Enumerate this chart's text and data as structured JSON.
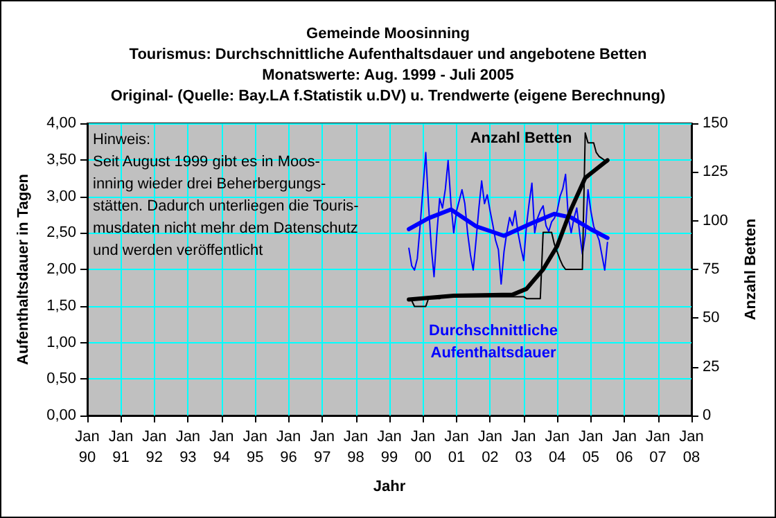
{
  "chart_data": {
    "type": "line",
    "title": "Gemeinde Moosinning",
    "subtitle": "Tourismus: Durchschnittliche Aufenthaltsdauer und angebotene Betten\nMonatswerte: Aug. 1999 - Juli 2005\nOriginal- (Quelle: Bay.LA f.Statistik u.DV) u. Trendwerte (eigene Berechnung)",
    "xlabel": "Jahr",
    "ylabel": "Aufenthaltsdauer in Tagen",
    "y2label": "Anzahl Betten",
    "annotations": [
      "Hinweis:\nSeit August 1999 gibt es in Moos-\ninning wieder drei Beherbergungs-\nstätten. Dadurch unterliegen die Touris-\nmusdaten nicht mehr dem Datenschutz\nund werden veröffentlicht"
    ],
    "xlim": [
      "1990-01",
      "2008-01"
    ],
    "xticks": [
      {
        "value": "1990-01",
        "label": "Jan\n90"
      },
      {
        "value": "1991-01",
        "label": "Jan\n91"
      },
      {
        "value": "1992-01",
        "label": "Jan\n92"
      },
      {
        "value": "1993-01",
        "label": "Jan\n93"
      },
      {
        "value": "1994-01",
        "label": "Jan\n94"
      },
      {
        "value": "1995-01",
        "label": "Jan\n95"
      },
      {
        "value": "1996-01",
        "label": "Jan\n96"
      },
      {
        "value": "1997-01",
        "label": "Jan\n97"
      },
      {
        "value": "1998-01",
        "label": "Jan\n98"
      },
      {
        "value": "1999-01",
        "label": "Jan\n99"
      },
      {
        "value": "2000-01",
        "label": "Jan\n00"
      },
      {
        "value": "2001-01",
        "label": "Jan\n01"
      },
      {
        "value": "2002-01",
        "label": "Jan\n02"
      },
      {
        "value": "2003-01",
        "label": "Jan\n03"
      },
      {
        "value": "2004-01",
        "label": "Jan\n04"
      },
      {
        "value": "2005-01",
        "label": "Jan\n05"
      },
      {
        "value": "2006-01",
        "label": "Jan\n06"
      },
      {
        "value": "2007-01",
        "label": "Jan\n07"
      },
      {
        "value": "2008-01",
        "label": "Jan\n08"
      }
    ],
    "ylim": [
      0,
      4
    ],
    "yticks": [
      {
        "value": 0,
        "label": "0,00"
      },
      {
        "value": 0.5,
        "label": "0,50"
      },
      {
        "value": 1,
        "label": "1,00"
      },
      {
        "value": 1.5,
        "label": "1,50"
      },
      {
        "value": 2,
        "label": "2,00"
      },
      {
        "value": 2.5,
        "label": "2,50"
      },
      {
        "value": 3,
        "label": "3,00"
      },
      {
        "value": 3.5,
        "label": "3,50"
      },
      {
        "value": 4,
        "label": "4,00"
      }
    ],
    "y2lim": [
      0,
      150
    ],
    "y2ticks": [
      0,
      25,
      50,
      75,
      100,
      125,
      150
    ],
    "grid": true,
    "legend": false,
    "marker": "none",
    "line_style": "solid",
    "series": [
      {
        "name": "Durchschnittliche\nAufenthaltsdauer",
        "color": "#0000ff",
        "axis": "y",
        "x": [
          "1999-08",
          "1999-09",
          "1999-10",
          "1999-11",
          "1999-12",
          "2000-01",
          "2000-02",
          "2000-03",
          "2000-04",
          "2000-05",
          "2000-06",
          "2000-07",
          "2000-08",
          "2000-09",
          "2000-10",
          "2000-11",
          "2000-12",
          "2001-01",
          "2001-02",
          "2001-03",
          "2001-04",
          "2001-05",
          "2001-06",
          "2001-07",
          "2001-08",
          "2001-09",
          "2001-10",
          "2001-11",
          "2001-12",
          "2002-01",
          "2002-02",
          "2002-03",
          "2002-04",
          "2002-05",
          "2002-06",
          "2002-07",
          "2002-08",
          "2002-09",
          "2002-10",
          "2002-11",
          "2002-12",
          "2003-01",
          "2003-02",
          "2003-03",
          "2003-04",
          "2003-05",
          "2003-06",
          "2003-07",
          "2003-08",
          "2003-09",
          "2003-10",
          "2003-11",
          "2003-12",
          "2004-01",
          "2004-02",
          "2004-03",
          "2004-04",
          "2004-05",
          "2004-06",
          "2004-07",
          "2004-08",
          "2004-09",
          "2004-10",
          "2004-11",
          "2004-12",
          "2005-01",
          "2005-02",
          "2005-03",
          "2005-04",
          "2005-05",
          "2005-06",
          "2005-07"
        ],
        "values": [
          2.29,
          2.05,
          1.99,
          2.15,
          2.59,
          3.1,
          3.6,
          2.9,
          2.3,
          1.9,
          2.5,
          2.97,
          2.84,
          3.1,
          3.49,
          2.9,
          2.5,
          2.8,
          2.95,
          3.09,
          2.9,
          2.5,
          2.2,
          1.99,
          2.4,
          2.84,
          3.21,
          2.9,
          3.02,
          2.8,
          2.6,
          2.4,
          2.27,
          1.8,
          2.24,
          2.5,
          2.71,
          2.6,
          2.8,
          2.5,
          2.3,
          2.12,
          2.6,
          2.9,
          3.18,
          2.5,
          2.7,
          2.8,
          2.87,
          2.6,
          2.52,
          2.65,
          2.7,
          2.8,
          3.0,
          3.1,
          3.3,
          2.71,
          2.5,
          2.7,
          2.84,
          2.5,
          2.21,
          2.46,
          3.09,
          2.8,
          2.59,
          2.5,
          2.4,
          2.2,
          1.99,
          2.37
        ]
      },
      {
        "color": "#0000ff",
        "axis": "y",
        "x": [
          "1999-08",
          "2000-03",
          "2000-11",
          "2001-08",
          "2002-06",
          "2003-05",
          "2003-12",
          "2004-06",
          "2005-01",
          "2005-07"
        ],
        "values": [
          2.55,
          2.7,
          2.82,
          2.59,
          2.46,
          2.65,
          2.76,
          2.71,
          2.55,
          2.43
        ]
      },
      {
        "name": "Anzahl Betten",
        "color": "#000000",
        "axis": "y2",
        "x": [
          "1999-08",
          "1999-09",
          "1999-10",
          "1999-11",
          "1999-12",
          "2000-01",
          "2000-02",
          "2000-03",
          "2000-04",
          "2000-05",
          "2000-06",
          "2000-07",
          "2000-08",
          "2000-09",
          "2000-10",
          "2000-11",
          "2000-12",
          "2001-01",
          "2001-02",
          "2001-03",
          "2001-04",
          "2001-05",
          "2001-06",
          "2001-07",
          "2001-08",
          "2001-09",
          "2001-10",
          "2001-11",
          "2001-12",
          "2002-01",
          "2002-02",
          "2002-03",
          "2002-04",
          "2002-05",
          "2002-06",
          "2002-07",
          "2002-08",
          "2002-09",
          "2002-10",
          "2002-11",
          "2002-12",
          "2003-01",
          "2003-02",
          "2003-03",
          "2003-04",
          "2003-05",
          "2003-06",
          "2003-07",
          "2003-08",
          "2003-09",
          "2003-10",
          "2003-11",
          "2003-12",
          "2004-01",
          "2004-02",
          "2004-03",
          "2004-04",
          "2004-05",
          "2004-06",
          "2004-07",
          "2004-08",
          "2004-09",
          "2004-10",
          "2004-11",
          "2004-12",
          "2005-01",
          "2005-02",
          "2005-03",
          "2005-04",
          "2005-05",
          "2005-06",
          "2005-07"
        ],
        "values": [
          59,
          59,
          56,
          56,
          56,
          56,
          56,
          60,
          60,
          60,
          60,
          60,
          61,
          61,
          61,
          61,
          61,
          61,
          61,
          61,
          61,
          61,
          61,
          61,
          61,
          61,
          61,
          61,
          61,
          61,
          61,
          61,
          61,
          61,
          61,
          61,
          61,
          61,
          61,
          61,
          61,
          61,
          60,
          60,
          60,
          60,
          60,
          60,
          94,
          94,
          94,
          94,
          88,
          84,
          80,
          77,
          75,
          75,
          75,
          75,
          75,
          75,
          75,
          145,
          140,
          140,
          140,
          135,
          133,
          132,
          131,
          130
        ]
      },
      {
        "color": "#000000",
        "axis": "y2",
        "x": [
          "1999-08",
          "2000-12",
          "2002-09",
          "2003-02",
          "2003-05",
          "2003-08",
          "2004-01",
          "2004-06",
          "2004-11",
          "2005-07"
        ],
        "values": [
          59.5,
          61.5,
          62,
          65,
          70,
          75,
          87,
          106,
          122,
          131
        ]
      }
    ]
  }
}
